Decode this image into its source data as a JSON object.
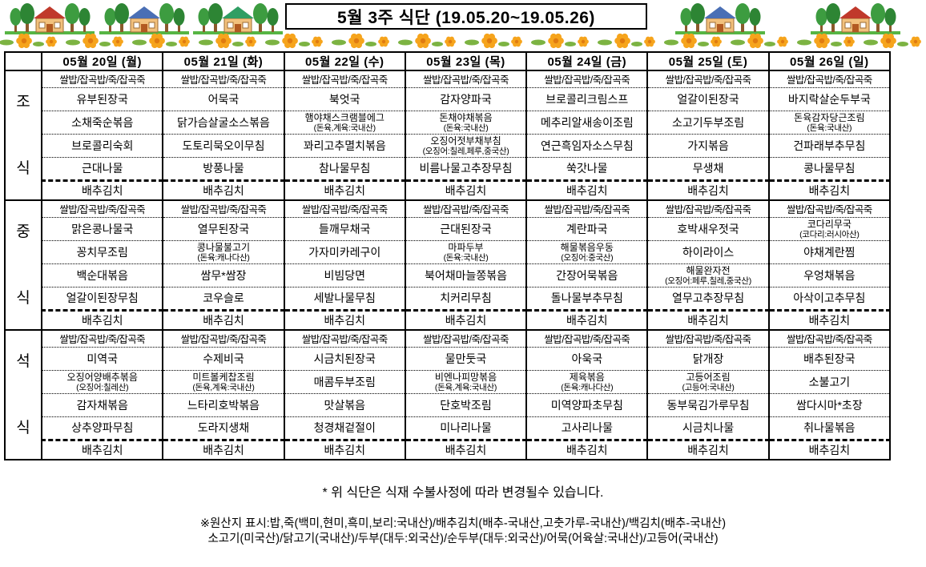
{
  "title": "5월 3주 식단 (19.05.20~19.05.26)",
  "banner": {
    "left_roof_colors": [
      "#c0392b",
      "#4a6fb5",
      "#2f9e63"
    ],
    "right_roof_colors": [
      "#4a6fb5",
      "#c0392b"
    ],
    "tree_color": "#3d9c40",
    "tree_color_dark": "#2d8534",
    "trunk_color": "#8a5a2b",
    "wall_color": "#f2c17d",
    "wall_stroke": "#9c6b33",
    "door_color": "#b25a21",
    "grass_color": "#57b544",
    "flower_petal": "#f6a41c",
    "flower_center": "#e07b10",
    "leaf_color": "#7cb342"
  },
  "table": {
    "day_headers": [
      "05월 20일 (월)",
      "05월 21일 (화)",
      "05월 22일 (수)",
      "05월 23일 (목)",
      "05월 24일 (금)",
      "05월 25일 (토)",
      "05월 26일 (일)"
    ],
    "rice_row": "쌀밥/잡곡밥/죽/잡곡죽",
    "kimchi": "배추김치",
    "meals": [
      {
        "name": "breakfast",
        "label": [
          "조",
          "식"
        ],
        "columns": [
          [
            "유부된장국",
            "소채죽순볶음",
            "브로콜리숙회",
            "근대나물"
          ],
          [
            "어묵국",
            "닭가슴살굴소스볶음",
            "도토리묵오이무침",
            "방풍나물"
          ],
          [
            "북엇국",
            {
              "text": "햄야채스크램블에그",
              "origin": "(돈육,계육:국내산)"
            },
            "꽈리고추멸치볶음",
            "참나물무침"
          ],
          [
            "감자양파국",
            {
              "text": "돈채야채볶음",
              "origin": "(돈육:국내산)"
            },
            {
              "text": "오징어젓부채부침",
              "origin": "(오징어:칠레,페루,중국산)"
            },
            "비름나물고추장무침"
          ],
          [
            "브로콜리크림스프",
            "메추리알새송이조림",
            "연근흑임자소스무침",
            "쑥갓나물"
          ],
          [
            "얼갈이된장국",
            "소고기두부조림",
            "가지볶음",
            "무생채"
          ],
          [
            "바지락살순두부국",
            {
              "text": "돈육감자당근조림",
              "origin": "(돈육:국내산)"
            },
            "건파래부추무침",
            "콩나물무침"
          ]
        ]
      },
      {
        "name": "lunch",
        "label": [
          "중",
          "식"
        ],
        "columns": [
          [
            "맑은콩나물국",
            "꽁치무조림",
            "백순대볶음",
            "얼갈이된장무침"
          ],
          [
            "열무된장국",
            {
              "text": "콩나물불고기",
              "origin": "(돈육:캐나다산)"
            },
            "쌈무*쌈장",
            "코우슬로"
          ],
          [
            "들깨무채국",
            "가자미카레구이",
            "비빔당면",
            "세발나물무침"
          ],
          [
            "근대된장국",
            {
              "text": "마파두부",
              "origin": "(돈육:국내산)"
            },
            "북어채마늘쫑볶음",
            "치커리무침"
          ],
          [
            "계란파국",
            {
              "text": "해물볶음우동",
              "origin": "(오징어:중국산)"
            },
            "간장어묵볶음",
            "돌나물부추무침"
          ],
          [
            "호박새우젓국",
            "하이라이스",
            {
              "text": "해물완자전",
              "origin": "(오징어:페루,칠레,중국산)"
            },
            "열무고추장무침"
          ],
          [
            {
              "text": "코다리무국",
              "origin": "(코다리:러시아산)"
            },
            "야채계란찜",
            "우엉채볶음",
            "아삭이고추무침"
          ]
        ]
      },
      {
        "name": "dinner",
        "label": [
          "석",
          "식"
        ],
        "columns": [
          [
            "미역국",
            {
              "text": "오징어양배추볶음",
              "origin": "(오징어:칠레산)"
            },
            "감자채볶음",
            "상추양파무침"
          ],
          [
            "수제비국",
            {
              "text": "미트볼케찹조림",
              "origin": "(돈육,계육:국내산)"
            },
            "느타리호박볶음",
            "도라지생채"
          ],
          [
            "시금치된장국",
            "매콤두부조림",
            "맛살볶음",
            "청경채겉절이"
          ],
          [
            "물만둣국",
            {
              "text": "비엔나피망볶음",
              "origin": "(돈육,계육:국내산)"
            },
            "단호박조림",
            "미나리나물"
          ],
          [
            "아욱국",
            {
              "text": "제육볶음",
              "origin": "(돈육:캐나다산)"
            },
            "미역양파초무침",
            "고사리나물"
          ],
          [
            "닭개장",
            {
              "text": "고등어조림",
              "origin": "(고등어:국내산)"
            },
            "동부묵김가루무침",
            "시금치나물"
          ],
          [
            "배추된장국",
            "소불고기",
            "쌈다시마*초장",
            "취나물볶음"
          ]
        ]
      }
    ]
  },
  "footer": {
    "note_star": "*  위 식단은 식재 수불사정에 따라 변경될수 있습니다.",
    "note_origin_1": "※원산지 표시:밥,죽(백미,현미,흑미,보리:국내산)/배추김치(배추-국내산,고춧가루-국내산)/백김치(배추-국내산)",
    "note_origin_2": "소고기(미국산)/닭고기(국내산)/두부(대두:외국산)/순두부(대두:외국산)/어묵(어육살:국내산)/고등어(국내산)"
  }
}
